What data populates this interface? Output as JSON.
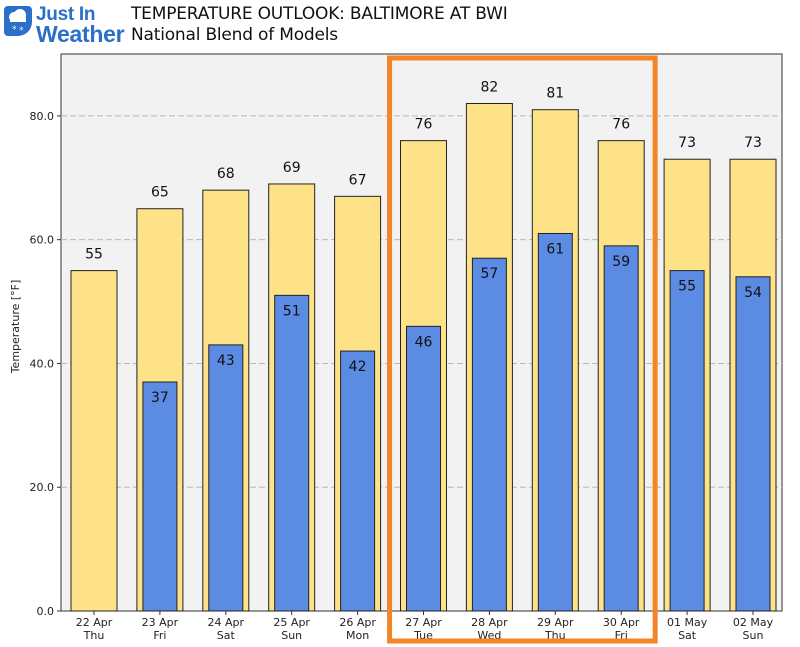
{
  "header": {
    "logo_line1": "Just In",
    "logo_line2": "Weather",
    "title": "TEMPERATURE OUTLOOK: BALTIMORE AT BWI",
    "subtitle": "National Blend of Models"
  },
  "colors": {
    "high_bar": "#fee287",
    "low_bar": "#5b8be3",
    "plot_background": "#f2f2f2",
    "highlight_box": "#f58426",
    "brand": "#2a6fc9"
  },
  "chart_data": {
    "type": "bar",
    "ylabel": "Temperature [°F]",
    "ylim": [
      0,
      90
    ],
    "yticks": [
      "0.0",
      "20.0",
      "40.0",
      "60.0",
      "80.0"
    ],
    "grid": true,
    "categories": [
      [
        "22 Apr",
        "Thu"
      ],
      [
        "23 Apr",
        "Fri"
      ],
      [
        "24 Apr",
        "Sat"
      ],
      [
        "25 Apr",
        "Sun"
      ],
      [
        "26 Apr",
        "Mon"
      ],
      [
        "27 Apr",
        "Tue"
      ],
      [
        "28 Apr",
        "Wed"
      ],
      [
        "29 Apr",
        "Thu"
      ],
      [
        "30 Apr",
        "Fri"
      ],
      [
        "01 May",
        "Sat"
      ],
      [
        "02 May",
        "Sun"
      ]
    ],
    "series": [
      {
        "key": "high",
        "values": [
          55,
          65,
          68,
          69,
          67,
          76,
          82,
          81,
          76,
          73,
          73
        ]
      },
      {
        "key": "low",
        "values": [
          null,
          37,
          43,
          51,
          42,
          46,
          57,
          61,
          59,
          55,
          54
        ]
      }
    ],
    "highlight": {
      "from": "27 Apr",
      "to": "30 Apr"
    }
  }
}
